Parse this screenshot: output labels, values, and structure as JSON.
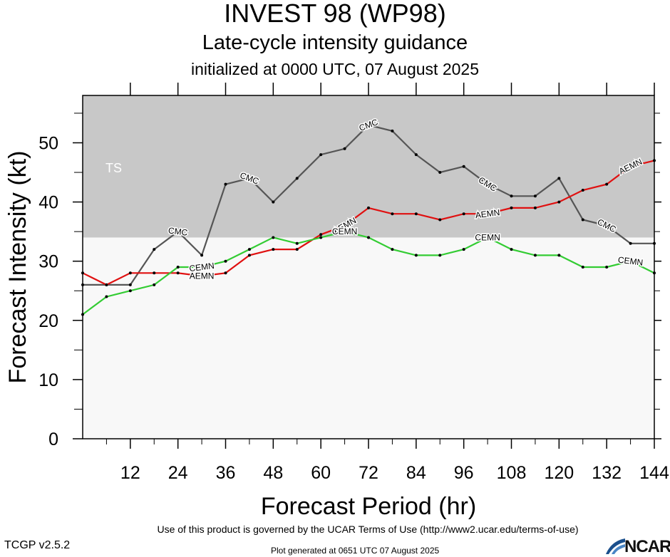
{
  "header": {
    "title": "INVEST 98 (WP98)",
    "subtitle": "Late-cycle intensity guidance",
    "init_text": "initialized at 0000 UTC, 07 August 2025"
  },
  "footer": {
    "terms": "Use of this product is governed by the UCAR Terms of Use (http://www2.ucar.edu/terms-of-use)",
    "version": "TCGP v2.5.2",
    "generated": "Plot generated at 0651 UTC   07 August 2025",
    "logo_text": "NCAR"
  },
  "chart_data": {
    "type": "line",
    "xlabel": "Forecast Period (hr)",
    "ylabel": "Forecast Intensity (kt)",
    "xlim": [
      0,
      144
    ],
    "ylim": [
      0,
      58
    ],
    "xticks": [
      12,
      24,
      36,
      48,
      60,
      72,
      84,
      96,
      108,
      120,
      132,
      144
    ],
    "yticks": [
      0,
      10,
      20,
      30,
      40,
      50
    ],
    "bands": [
      {
        "label": "TS",
        "from": 34,
        "to": 58,
        "color": "#c8c8c8"
      }
    ],
    "background_color": "#f8f8f8",
    "series": [
      {
        "name": "CMC",
        "color": "#555555",
        "x": [
          0,
          6,
          12,
          18,
          24,
          30,
          36,
          42,
          48,
          54,
          60,
          66,
          72,
          78,
          84,
          90,
          96,
          102,
          108,
          114,
          120,
          126,
          132,
          138,
          144
        ],
        "y": [
          26,
          26,
          26,
          32,
          35,
          31,
          43,
          44,
          40,
          44,
          48,
          49,
          53,
          52,
          48,
          45,
          46,
          43,
          41,
          41,
          44,
          37,
          36,
          33,
          33
        ],
        "label_at": [
          24,
          42,
          72,
          102,
          132
        ]
      },
      {
        "name": "AEMN",
        "color": "#e01010",
        "x": [
          0,
          6,
          12,
          18,
          24,
          30,
          36,
          42,
          48,
          54,
          60,
          66,
          72,
          78,
          84,
          90,
          96,
          102,
          108,
          114,
          120,
          126,
          132,
          138,
          144
        ],
        "y": [
          28,
          26,
          28,
          28,
          28,
          27.5,
          28,
          31,
          32,
          32,
          34.5,
          36,
          39,
          38,
          38,
          37,
          38,
          38,
          39,
          39,
          40,
          42,
          43,
          46,
          47
        ],
        "label_at": [
          30,
          66,
          102,
          138
        ]
      },
      {
        "name": "CEMN",
        "color": "#33cc33",
        "x": [
          0,
          6,
          12,
          18,
          24,
          30,
          36,
          42,
          48,
          54,
          60,
          66,
          72,
          78,
          84,
          90,
          96,
          102,
          108,
          114,
          120,
          126,
          132,
          138,
          144
        ],
        "y": [
          21,
          24,
          25,
          26,
          29,
          29,
          30,
          32,
          34,
          33,
          34,
          35,
          34,
          32,
          31,
          31,
          32,
          34,
          32,
          31,
          31,
          29,
          29,
          30,
          28
        ],
        "label_at": [
          30,
          66,
          102,
          138
        ]
      }
    ]
  }
}
